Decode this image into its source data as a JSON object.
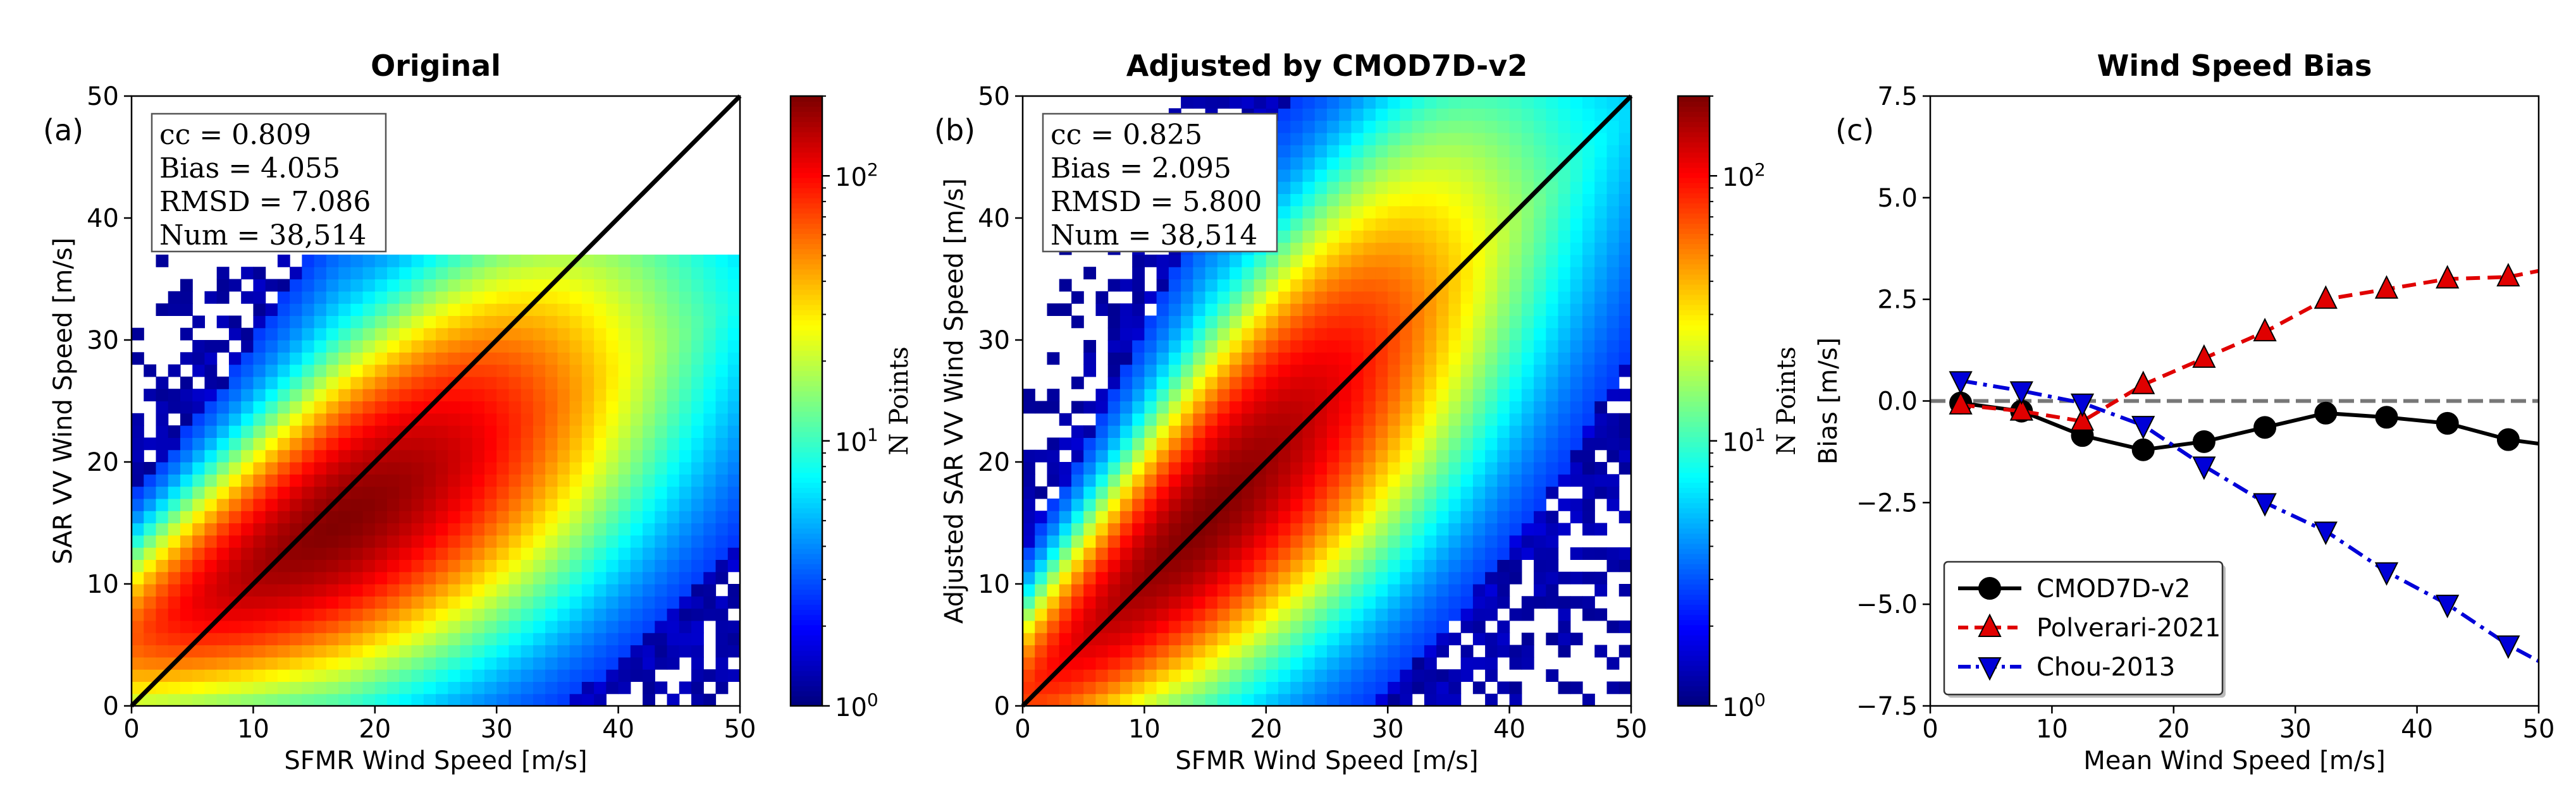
{
  "chart_data": [
    {
      "id": "a",
      "type": "heatmap",
      "panel_label": "(a)",
      "title": "Original",
      "xlabel": "SFMR Wind Speed [m/s]",
      "ylabel": "SAR VV Wind Speed [m/s]",
      "xlim": [
        0,
        50
      ],
      "ylim": [
        0,
        50
      ],
      "xticks": [
        "0",
        "10",
        "20",
        "30",
        "40",
        "50"
      ],
      "yticks": [
        "0",
        "10",
        "20",
        "30",
        "40",
        "50"
      ],
      "one_to_one_line": true,
      "stats": [
        "cc = 0.809",
        "Bias = 4.055",
        "RMSD = 7.086",
        "Num = 38,514"
      ],
      "colorbar": {
        "label": "N Points",
        "scale": "log",
        "range": [
          1,
          200
        ],
        "ticks": [
          {
            "base": "10",
            "exp": "0",
            "value": 1
          },
          {
            "base": "10",
            "exp": "1",
            "value": 10
          },
          {
            "base": "10",
            "exp": "2",
            "value": 100
          }
        ]
      },
      "density": {
        "center_x": 17,
        "center_y": 15,
        "slope": 0.55,
        "intercept_note": "y = 5.6 + 0.55 x",
        "peak": 200,
        "x_range": [
          0,
          50
        ],
        "y_min_range": [
          1,
          37
        ],
        "bin": 1
      }
    },
    {
      "id": "b",
      "type": "heatmap",
      "panel_label": "(b)",
      "title": "Adjusted by CMOD7D-v2",
      "xlabel": "SFMR Wind Speed [m/s]",
      "ylabel": "Adjusted SAR VV Wind Speed [m/s]",
      "xlim": [
        0,
        50
      ],
      "ylim": [
        0,
        50
      ],
      "xticks": [
        "0",
        "10",
        "20",
        "30",
        "40",
        "50"
      ],
      "yticks": [
        "0",
        "10",
        "20",
        "30",
        "40",
        "50"
      ],
      "one_to_one_line": true,
      "stats": [
        "cc = 0.825",
        "Bias = 2.095",
        "RMSD = 5.800",
        "Num = 38,514"
      ],
      "colorbar": {
        "label": "N Points",
        "scale": "log",
        "range": [
          1,
          200
        ],
        "ticks": [
          {
            "base": "10",
            "exp": "0",
            "value": 1
          },
          {
            "base": "10",
            "exp": "1",
            "value": 10
          },
          {
            "base": "10",
            "exp": "2",
            "value": 100
          }
        ]
      },
      "density": {
        "center_x": 15,
        "center_y": 14,
        "slope": 0.95,
        "intercept_note": "y = 1.0 + 0.95 x",
        "peak": 200,
        "x_range": [
          0,
          50
        ],
        "y_min_range": [
          0,
          50
        ],
        "bin": 1
      }
    },
    {
      "id": "c",
      "type": "line",
      "panel_label": "(c)",
      "title": "Wind Speed Bias",
      "xlabel": "Mean Wind Speed [m/s]",
      "ylabel": "Bias [m/s]",
      "xlim": [
        0,
        50
      ],
      "ylim": [
        -7.5,
        7.5
      ],
      "xticks": [
        "0",
        "10",
        "20",
        "30",
        "40",
        "50"
      ],
      "yticks": [
        "−7.5",
        "−5.0",
        "−2.5",
        "0.0",
        "2.5",
        "5.0",
        "7.5"
      ],
      "ytick_values": [
        -7.5,
        -5.0,
        -2.5,
        0.0,
        2.5,
        5.0,
        7.5
      ],
      "zero_line": true,
      "x": [
        2.5,
        7.5,
        12.5,
        17.5,
        22.5,
        27.5,
        32.5,
        37.5,
        42.5,
        47.5
      ],
      "series": [
        {
          "name": "CMOD7D-v2",
          "color": "#000000",
          "style": "solid",
          "marker": "circle",
          "values": [
            -0.05,
            -0.25,
            -0.85,
            -1.2,
            -1.0,
            -0.65,
            -0.3,
            -0.4,
            -0.55,
            -0.95
          ],
          "end_value": -1.05
        },
        {
          "name": "Polverari-2021",
          "color": "#e00000",
          "style": "dashed",
          "marker": "triangle-up",
          "values": [
            -0.1,
            -0.25,
            -0.5,
            0.4,
            1.05,
            1.7,
            2.5,
            2.75,
            3.0,
            3.05
          ],
          "end_value": 3.2
        },
        {
          "name": "Chou-2013",
          "color": "#0000d8",
          "style": "dashdot",
          "marker": "triangle-down",
          "values": [
            0.5,
            0.25,
            -0.05,
            -0.6,
            -1.6,
            -2.5,
            -3.2,
            -4.2,
            -5.0,
            -6.0
          ],
          "end_value": -6.4
        }
      ]
    }
  ]
}
